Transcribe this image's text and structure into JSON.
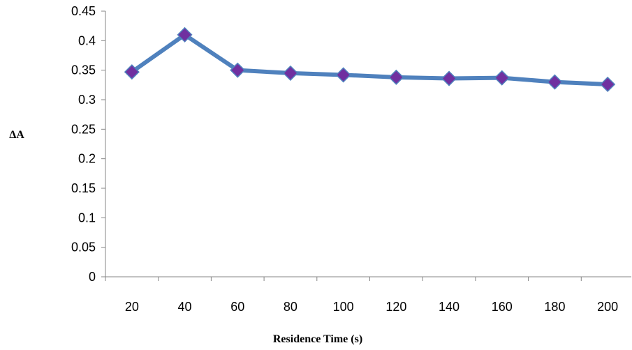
{
  "chart_data": {
    "type": "line",
    "title": "",
    "xlabel": "Residence Time (s)",
    "ylabel": "ΔA",
    "categories": [
      "20",
      "40",
      "60",
      "80",
      "100",
      "120",
      "140",
      "160",
      "180",
      "200"
    ],
    "series": [
      {
        "values": [
          0.347,
          0.41,
          0.35,
          0.345,
          0.342,
          0.338,
          0.336,
          0.337,
          0.33,
          0.326
        ],
        "color": "#4F81BD",
        "marker": "diamond",
        "marker_color": "#7030A0"
      }
    ],
    "ylim": [
      0,
      0.45
    ],
    "yticks": [
      "0",
      "0.05",
      "0.1",
      "0.15",
      "0.2",
      "0.25",
      "0.3",
      "0.35",
      "0.4",
      "0.45"
    ],
    "grid": false,
    "legend": "none"
  }
}
